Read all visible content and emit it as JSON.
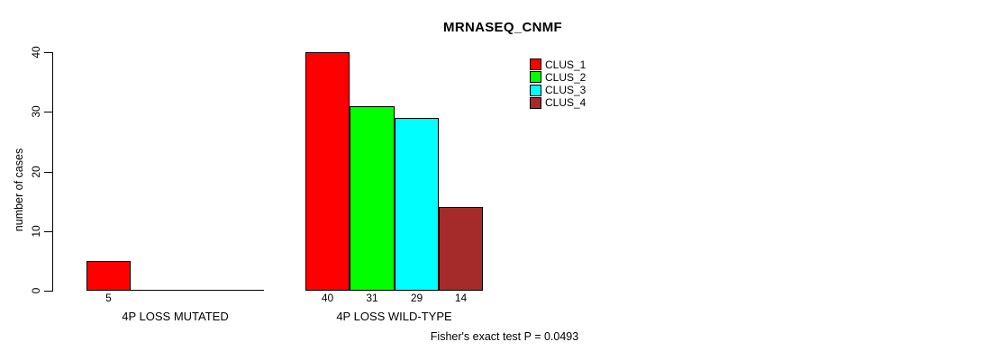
{
  "title": "MRNASEQ_CNMF",
  "footer": "Fisher's exact test P = 0.0493",
  "chart_data": {
    "type": "bar",
    "title": "MRNASEQ_CNMF",
    "xlabel": "",
    "ylabel": "number of cases",
    "ylim": [
      0,
      40
    ],
    "yticks": [
      0,
      10,
      20,
      30,
      40
    ],
    "grid": false,
    "legend_position": "top-right",
    "categories": [
      "4P LOSS MUTATED",
      "4P LOSS WILD-TYPE"
    ],
    "series": [
      {
        "name": "CLUS_1",
        "color": "#ff0000",
        "values": [
          5,
          40
        ]
      },
      {
        "name": "CLUS_2",
        "color": "#00ff00",
        "values": [
          0,
          31
        ]
      },
      {
        "name": "CLUS_3",
        "color": "#00ffff",
        "values": [
          0,
          29
        ]
      },
      {
        "name": "CLUS_4",
        "color": "#a52a2a",
        "values": [
          0,
          14
        ]
      }
    ],
    "bar_value_labels": "shown under each non-zero bar",
    "annotation": "Fisher's exact test P = 0.0493"
  }
}
